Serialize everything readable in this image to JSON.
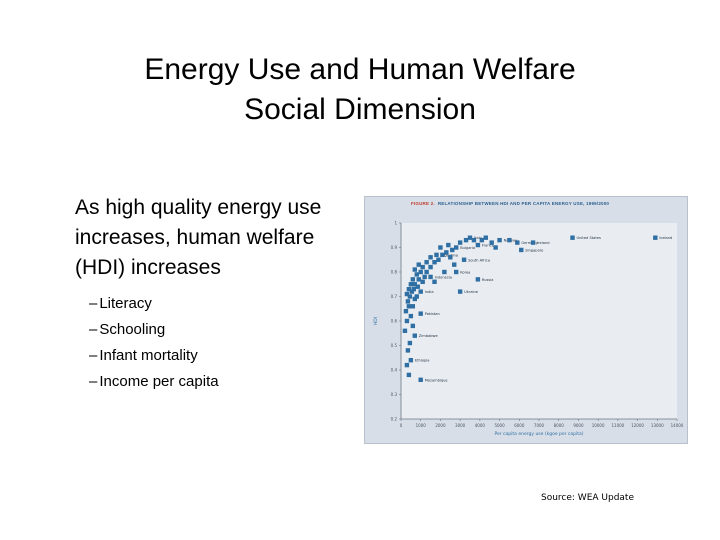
{
  "title": {
    "line1": "Energy Use and Human Welfare",
    "line2": "Social Dimension"
  },
  "bullets": {
    "main": "As high quality energy use increases, human welfare (HDI) increases",
    "sub": [
      "Literacy",
      "Schooling",
      "Infant mortality",
      "Income per capita"
    ],
    "dash": "–"
  },
  "figure": {
    "label": "Figure 2.",
    "header": "Relationship between HDI and per capita energy use, 1999/2000"
  },
  "source": "Source: WEA Update",
  "colors": {
    "marker": "#2f6fa3",
    "plot_bg": "#e9edf2",
    "panel_bg": "#d7dee7",
    "grid": "#ffffff"
  },
  "chart_data": {
    "type": "scatter",
    "xlabel": "Per capita energy use (kgoe per capita)",
    "ylabel": "HDI",
    "xlim": [
      0,
      14000
    ],
    "ylim": [
      0.2,
      1.0
    ],
    "x_ticks": [
      "0",
      "1000",
      "2000",
      "3000",
      "4000",
      "5000",
      "6000",
      "7000",
      "8000",
      "9000",
      "10000",
      "11000",
      "12000",
      "13000",
      "14000"
    ],
    "y_ticks": [
      "0.2",
      "0.3",
      "0.4",
      "0.5",
      "0.6",
      "0.7",
      "0.8",
      "0.9",
      "1"
    ],
    "grid": false,
    "legend": "none",
    "points": [
      {
        "x": 1000,
        "y": 0.36,
        "label": "Mozambique"
      },
      {
        "x": 500,
        "y": 0.44,
        "label": "Ethiopia"
      },
      {
        "x": 700,
        "y": 0.54,
        "label": "Zimbabwe"
      },
      {
        "x": 1000,
        "y": 0.63,
        "label": "Pakistan"
      },
      {
        "x": 1000,
        "y": 0.72,
        "label": "India"
      },
      {
        "x": 1500,
        "y": 0.78,
        "label": "Indonesia"
      },
      {
        "x": 2800,
        "y": 0.8,
        "label": "Korea"
      },
      {
        "x": 1800,
        "y": 0.87,
        "label": "Argentina"
      },
      {
        "x": 2800,
        "y": 0.9,
        "label": "Bulgaria"
      },
      {
        "x": 3200,
        "y": 0.85,
        "label": "South Africa"
      },
      {
        "x": 3900,
        "y": 0.77,
        "label": "Russia"
      },
      {
        "x": 3000,
        "y": 0.72,
        "label": "Ukraine"
      },
      {
        "x": 3500,
        "y": 0.94,
        "label": "Italy"
      },
      {
        "x": 3900,
        "y": 0.91,
        "label": "France"
      },
      {
        "x": 5900,
        "y": 0.92,
        "label": "Germany"
      },
      {
        "x": 6700,
        "y": 0.92,
        "label": "Ireland"
      },
      {
        "x": 5000,
        "y": 0.93,
        "label": "Norway"
      },
      {
        "x": 6100,
        "y": 0.89,
        "label": "Singapore"
      },
      {
        "x": 8700,
        "y": 0.94,
        "label": "United States"
      },
      {
        "x": 12900,
        "y": 0.94,
        "label": "Iceland"
      },
      {
        "x": 400,
        "y": 0.38
      },
      {
        "x": 300,
        "y": 0.42
      },
      {
        "x": 350,
        "y": 0.48
      },
      {
        "x": 450,
        "y": 0.51
      },
      {
        "x": 200,
        "y": 0.56
      },
      {
        "x": 600,
        "y": 0.58
      },
      {
        "x": 300,
        "y": 0.6
      },
      {
        "x": 500,
        "y": 0.62
      },
      {
        "x": 250,
        "y": 0.64
      },
      {
        "x": 400,
        "y": 0.66
      },
      {
        "x": 600,
        "y": 0.66
      },
      {
        "x": 350,
        "y": 0.68
      },
      {
        "x": 700,
        "y": 0.69
      },
      {
        "x": 450,
        "y": 0.7
      },
      {
        "x": 800,
        "y": 0.7
      },
      {
        "x": 300,
        "y": 0.71
      },
      {
        "x": 550,
        "y": 0.72
      },
      {
        "x": 650,
        "y": 0.73
      },
      {
        "x": 400,
        "y": 0.73
      },
      {
        "x": 850,
        "y": 0.74
      },
      {
        "x": 700,
        "y": 0.75
      },
      {
        "x": 500,
        "y": 0.75
      },
      {
        "x": 1100,
        "y": 0.76
      },
      {
        "x": 900,
        "y": 0.77
      },
      {
        "x": 600,
        "y": 0.77
      },
      {
        "x": 1200,
        "y": 0.78
      },
      {
        "x": 800,
        "y": 0.79
      },
      {
        "x": 1300,
        "y": 0.8
      },
      {
        "x": 1000,
        "y": 0.8
      },
      {
        "x": 700,
        "y": 0.81
      },
      {
        "x": 1500,
        "y": 0.82
      },
      {
        "x": 1100,
        "y": 0.82
      },
      {
        "x": 900,
        "y": 0.83
      },
      {
        "x": 1700,
        "y": 0.84
      },
      {
        "x": 1300,
        "y": 0.84
      },
      {
        "x": 1900,
        "y": 0.85
      },
      {
        "x": 1500,
        "y": 0.86
      },
      {
        "x": 2100,
        "y": 0.87
      },
      {
        "x": 2300,
        "y": 0.88
      },
      {
        "x": 2500,
        "y": 0.86
      },
      {
        "x": 2600,
        "y": 0.89
      },
      {
        "x": 2000,
        "y": 0.9
      },
      {
        "x": 2400,
        "y": 0.91
      },
      {
        "x": 3000,
        "y": 0.92
      },
      {
        "x": 3300,
        "y": 0.93
      },
      {
        "x": 3700,
        "y": 0.93
      },
      {
        "x": 4100,
        "y": 0.93
      },
      {
        "x": 4300,
        "y": 0.94
      },
      {
        "x": 4600,
        "y": 0.92
      },
      {
        "x": 5500,
        "y": 0.93
      },
      {
        "x": 4800,
        "y": 0.9
      },
      {
        "x": 2200,
        "y": 0.8
      },
      {
        "x": 1700,
        "y": 0.76
      },
      {
        "x": 2700,
        "y": 0.83
      }
    ]
  }
}
